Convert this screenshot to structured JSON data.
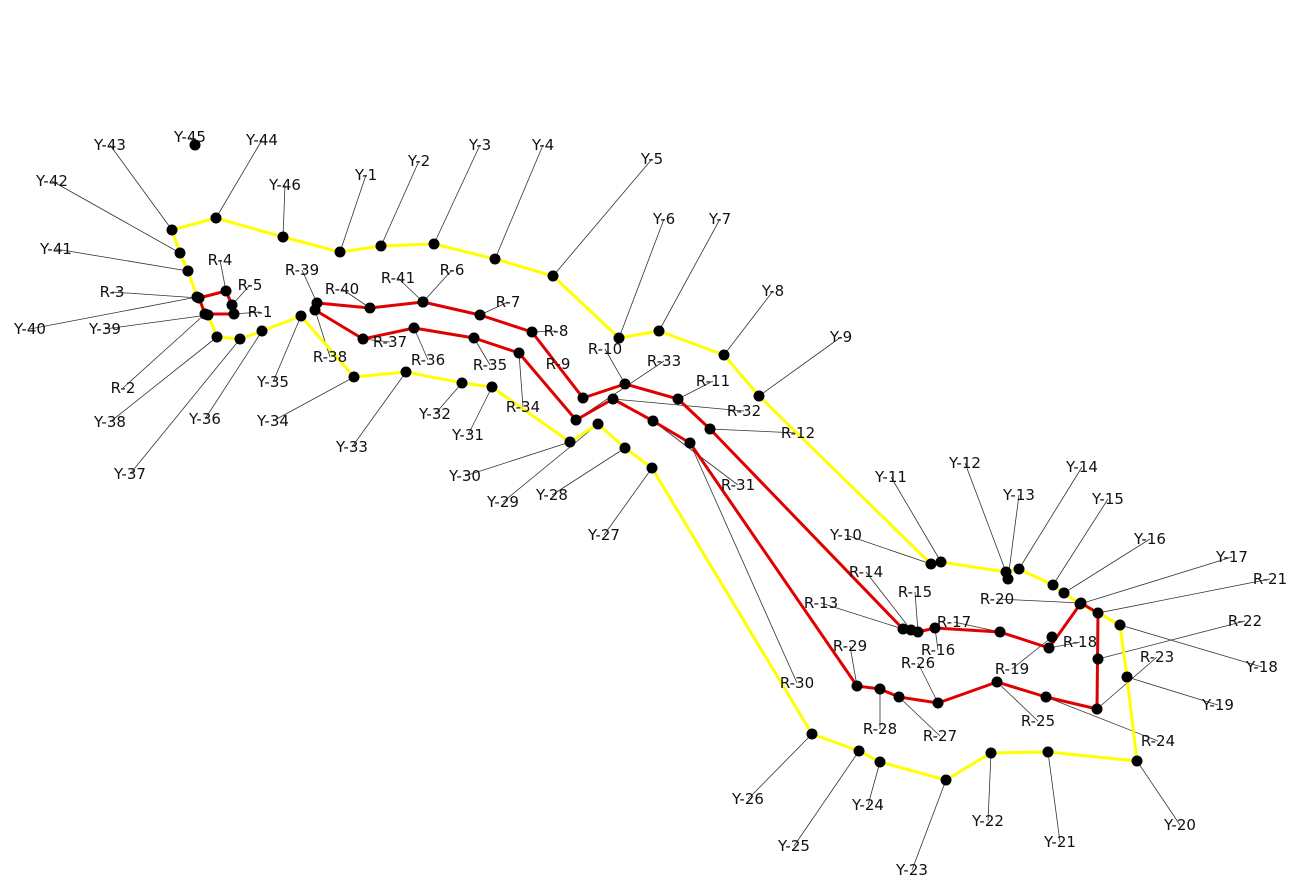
{
  "colors": {
    "yellow": "#ffff00",
    "red": "#e00000",
    "point": "#000000",
    "leader": "#333333"
  },
  "yellow_polygon": [
    "Y-1",
    "Y-2",
    "Y-3",
    "Y-4",
    "Y-5",
    "Y-6",
    "Y-7",
    "Y-8",
    "Y-9",
    "Y-10",
    "Y-11",
    "Y-12",
    "Y-13",
    "Y-14",
    "Y-15",
    "Y-16",
    "Y-17",
    "Y-18",
    "Y-19",
    "Y-20",
    "Y-21",
    "Y-22",
    "Y-23",
    "Y-24",
    "Y-25",
    "Y-26",
    "Y-27",
    "Y-28",
    "Y-29",
    "Y-30",
    "Y-31",
    "Y-32",
    "Y-33",
    "Y-34",
    "Y-35",
    "Y-36",
    "Y-37",
    "Y-38",
    "Y-39",
    "Y-40",
    "Y-41",
    "Y-42",
    "Y-43",
    "Y-44",
    "Y-45",
    "Y-46"
  ],
  "red_small_polygon": [
    "R-1",
    "R-2",
    "R-3",
    "R-4",
    "R-5"
  ],
  "red_main_polygon": [
    "R-6",
    "R-7",
    "R-8",
    "R-9",
    "R-10",
    "R-11",
    "R-12",
    "R-13",
    "R-14",
    "R-15",
    "R-16",
    "R-17",
    "R-18",
    "R-19",
    "R-20",
    "R-21",
    "R-22",
    "R-23",
    "R-24",
    "R-25",
    "R-26",
    "R-27",
    "R-28",
    "R-29",
    "R-30",
    "R-31",
    "R-32",
    "R-33",
    "R-34",
    "R-35",
    "R-36",
    "R-37",
    "R-38",
    "R-39",
    "R-40",
    "R-41"
  ]
}
